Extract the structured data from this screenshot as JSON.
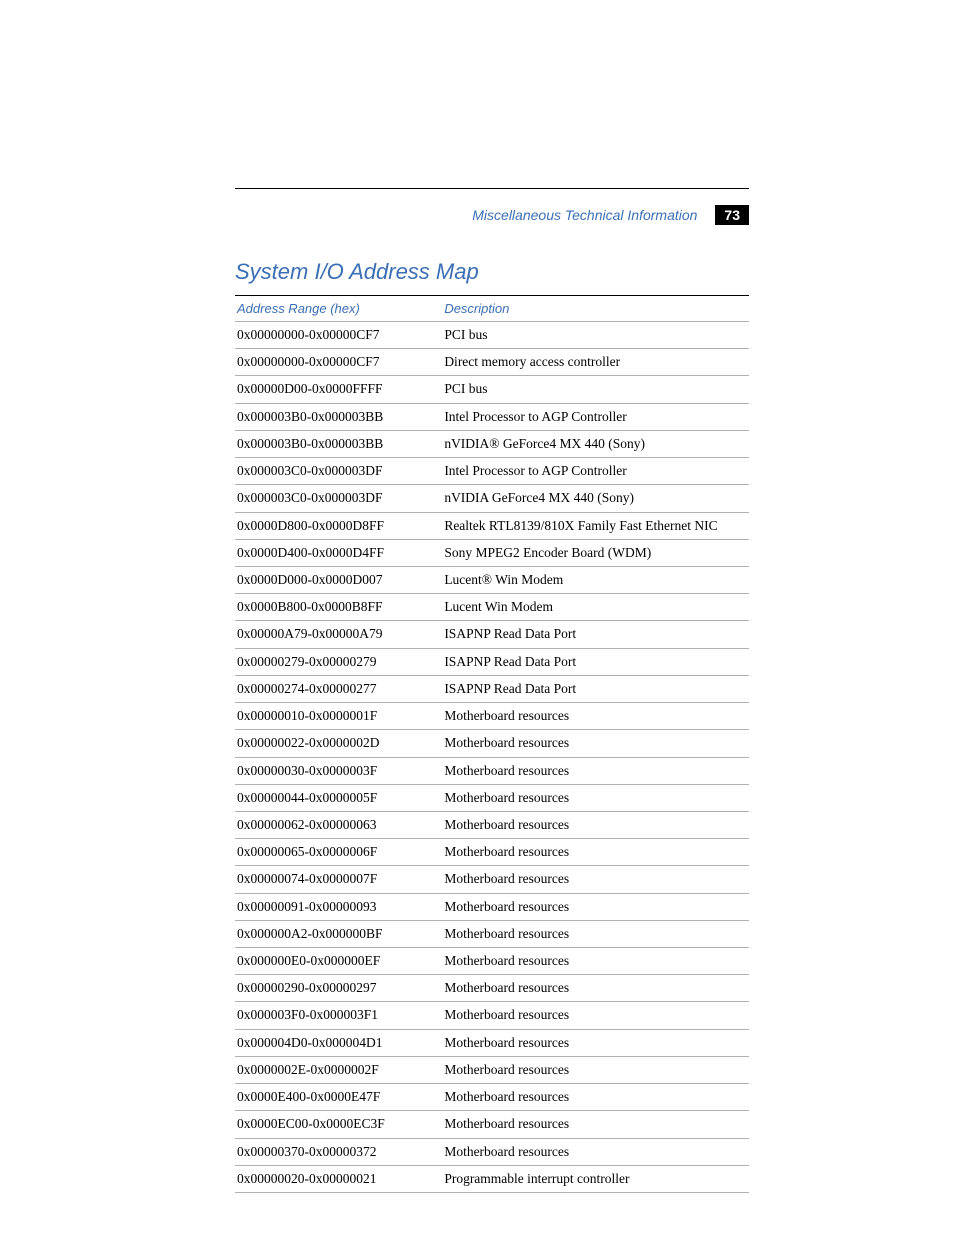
{
  "header": {
    "title": "Miscellaneous Technical Information",
    "page_number": "73",
    "accent_color": "#3b6fb5",
    "rule_color": "#000000",
    "badge_bg": "#000000",
    "badge_fg": "#ffffff"
  },
  "section": {
    "title": "System I/O Address Map"
  },
  "table": {
    "columns": [
      "Address Range (hex)",
      "Description"
    ],
    "row_border_color": "#b0b0b0",
    "header_border_color": "#000000",
    "font_size_pt": 10,
    "rows": [
      [
        "0x00000000-0x00000CF7",
        "PCI bus"
      ],
      [
        "0x00000000-0x00000CF7",
        "Direct memory access controller"
      ],
      [
        "0x00000D00-0x0000FFFF",
        "PCI bus"
      ],
      [
        "0x000003B0-0x000003BB",
        "Intel Processor to AGP Controller"
      ],
      [
        "0x000003B0-0x000003BB",
        "nVIDIA® GeForce4 MX 440 (Sony)"
      ],
      [
        "0x000003C0-0x000003DF",
        "Intel Processor to AGP Controller"
      ],
      [
        "0x000003C0-0x000003DF",
        "nVIDIA GeForce4 MX 440 (Sony)"
      ],
      [
        "0x0000D800-0x0000D8FF",
        "Realtek RTL8139/810X Family Fast Ethernet NIC"
      ],
      [
        "0x0000D400-0x0000D4FF",
        "Sony MPEG2 Encoder Board (WDM)"
      ],
      [
        "0x0000D000-0x0000D007",
        "Lucent® Win Modem"
      ],
      [
        "0x0000B800-0x0000B8FF",
        "Lucent Win Modem"
      ],
      [
        "0x00000A79-0x00000A79",
        "ISAPNP Read Data Port"
      ],
      [
        "0x00000279-0x00000279",
        "ISAPNP Read Data Port"
      ],
      [
        "0x00000274-0x00000277",
        "ISAPNP Read Data Port"
      ],
      [
        "0x00000010-0x0000001F",
        "Motherboard resources"
      ],
      [
        "0x00000022-0x0000002D",
        "Motherboard resources"
      ],
      [
        "0x00000030-0x0000003F",
        "Motherboard resources"
      ],
      [
        "0x00000044-0x0000005F",
        "Motherboard resources"
      ],
      [
        "0x00000062-0x00000063",
        "Motherboard resources"
      ],
      [
        "0x00000065-0x0000006F",
        "Motherboard resources"
      ],
      [
        "0x00000074-0x0000007F",
        "Motherboard resources"
      ],
      [
        "0x00000091-0x00000093",
        "Motherboard resources"
      ],
      [
        "0x000000A2-0x000000BF",
        "Motherboard resources"
      ],
      [
        "0x000000E0-0x000000EF",
        "Motherboard resources"
      ],
      [
        "0x00000290-0x00000297",
        "Motherboard resources"
      ],
      [
        "0x000003F0-0x000003F1",
        "Motherboard resources"
      ],
      [
        "0x000004D0-0x000004D1",
        "Motherboard resources"
      ],
      [
        "0x0000002E-0x0000002F",
        "Motherboard resources"
      ],
      [
        "0x0000E400-0x0000E47F",
        "Motherboard resources"
      ],
      [
        "0x0000EC00-0x0000EC3F",
        "Motherboard resources"
      ],
      [
        "0x00000370-0x00000372",
        "Motherboard resources"
      ],
      [
        "0x00000020-0x00000021",
        "Programmable interrupt controller"
      ]
    ]
  }
}
